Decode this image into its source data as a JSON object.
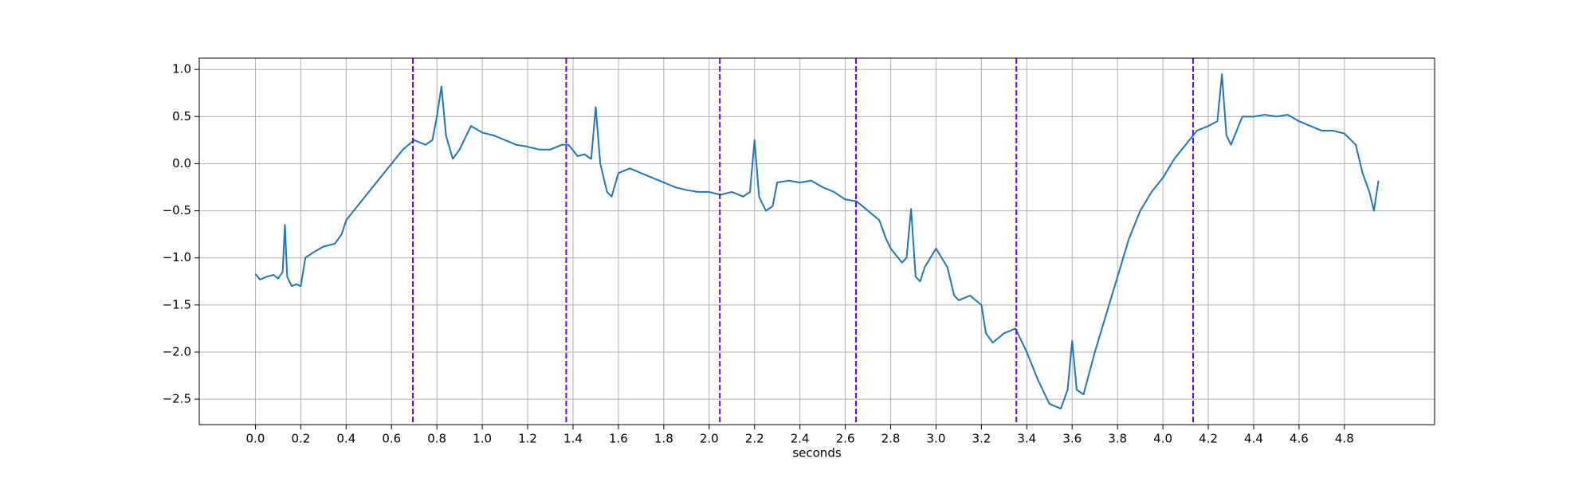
{
  "chart_data": {
    "type": "line",
    "x_label": "seconds",
    "x": [
      0.0,
      0.02,
      0.05,
      0.08,
      0.1,
      0.12,
      0.13,
      0.14,
      0.16,
      0.18,
      0.2,
      0.22,
      0.25,
      0.3,
      0.35,
      0.38,
      0.4,
      0.45,
      0.5,
      0.55,
      0.6,
      0.65,
      0.7,
      0.75,
      0.78,
      0.8,
      0.82,
      0.84,
      0.87,
      0.9,
      0.95,
      1.0,
      1.05,
      1.1,
      1.15,
      1.2,
      1.25,
      1.3,
      1.35,
      1.38,
      1.42,
      1.45,
      1.48,
      1.5,
      1.52,
      1.55,
      1.57,
      1.6,
      1.65,
      1.7,
      1.75,
      1.8,
      1.85,
      1.9,
      1.95,
      2.0,
      2.05,
      2.1,
      2.15,
      2.18,
      2.2,
      2.22,
      2.25,
      2.28,
      2.3,
      2.35,
      2.4,
      2.45,
      2.5,
      2.55,
      2.6,
      2.65,
      2.7,
      2.75,
      2.78,
      2.8,
      2.85,
      2.87,
      2.89,
      2.91,
      2.93,
      2.95,
      3.0,
      3.05,
      3.08,
      3.1,
      3.15,
      3.2,
      3.22,
      3.25,
      3.3,
      3.35,
      3.4,
      3.45,
      3.5,
      3.55,
      3.58,
      3.6,
      3.62,
      3.65,
      3.7,
      3.75,
      3.8,
      3.85,
      3.9,
      3.95,
      4.0,
      4.05,
      4.1,
      4.15,
      4.2,
      4.24,
      4.26,
      4.28,
      4.3,
      4.35,
      4.4,
      4.45,
      4.5,
      4.55,
      4.6,
      4.65,
      4.7,
      4.75,
      4.8,
      4.85,
      4.88,
      4.91,
      4.93,
      4.95
    ],
    "series": [
      {
        "color": "#1f77b4",
        "values": [
          -1.17,
          -1.23,
          -1.2,
          -1.18,
          -1.22,
          -1.15,
          -0.65,
          -1.2,
          -1.3,
          -1.28,
          -1.3,
          -1.0,
          -0.95,
          -0.88,
          -0.85,
          -0.75,
          -0.6,
          -0.45,
          -0.3,
          -0.15,
          0.0,
          0.15,
          0.25,
          0.2,
          0.25,
          0.5,
          0.82,
          0.3,
          0.05,
          0.15,
          0.4,
          0.33,
          0.3,
          0.25,
          0.2,
          0.18,
          0.15,
          0.15,
          0.2,
          0.2,
          0.08,
          0.1,
          0.05,
          0.6,
          0.0,
          -0.3,
          -0.35,
          -0.1,
          -0.05,
          -0.1,
          -0.15,
          -0.2,
          -0.25,
          -0.28,
          -0.3,
          -0.3,
          -0.33,
          -0.3,
          -0.35,
          -0.3,
          0.25,
          -0.35,
          -0.5,
          -0.45,
          -0.2,
          -0.18,
          -0.2,
          -0.18,
          -0.25,
          -0.3,
          -0.38,
          -0.4,
          -0.5,
          -0.6,
          -0.8,
          -0.9,
          -1.05,
          -1.0,
          -0.48,
          -1.2,
          -1.25,
          -1.1,
          -0.9,
          -1.1,
          -1.4,
          -1.45,
          -1.4,
          -1.5,
          -1.8,
          -1.9,
          -1.8,
          -1.75,
          -2.0,
          -2.3,
          -2.55,
          -2.6,
          -2.4,
          -1.88,
          -2.4,
          -2.45,
          -2.0,
          -1.6,
          -1.2,
          -0.8,
          -0.5,
          -0.3,
          -0.15,
          0.05,
          0.2,
          0.35,
          0.4,
          0.45,
          0.95,
          0.3,
          0.2,
          0.5,
          0.5,
          0.52,
          0.5,
          0.52,
          0.45,
          0.4,
          0.35,
          0.35,
          0.32,
          0.2,
          -0.1,
          -0.3,
          -0.5,
          -0.18
        ]
      }
    ],
    "vlines": [
      0.694,
      1.37,
      2.047,
      2.647,
      3.354,
      4.133
    ],
    "vline_color": "#6a00ff",
    "xlim": [
      -0.2475,
      5.1975
    ],
    "ylim": [
      -2.77,
      1.12
    ],
    "xticks": [
      {
        "value": 0,
        "label": "0.0"
      },
      0.2,
      0.4,
      0.6,
      0.8,
      {
        "value": 1,
        "label": "1.0"
      },
      1.2,
      1.4,
      1.6,
      1.8,
      {
        "value": 2,
        "label": "2.0"
      },
      2.2,
      2.4,
      2.6,
      2.8,
      {
        "value": 3,
        "label": "3.0"
      },
      3.2,
      3.4,
      3.6,
      3.8,
      {
        "value": 4,
        "label": "4.0"
      },
      4.2,
      4.4,
      4.6,
      4.8
    ],
    "yticks": [
      {
        "value": -2.5,
        "label": "−2.5"
      },
      {
        "value": -2,
        "label": "−2.0"
      },
      {
        "value": -1.5,
        "label": "−1.5"
      },
      {
        "value": -1,
        "label": "−1.0"
      },
      {
        "value": -0.5,
        "label": "−0.5"
      },
      {
        "value": 0,
        "label": "0.0"
      },
      {
        "value": 0.5,
        "label": "0.5"
      },
      {
        "value": 1,
        "label": "1.0"
      }
    ],
    "grid": true
  }
}
